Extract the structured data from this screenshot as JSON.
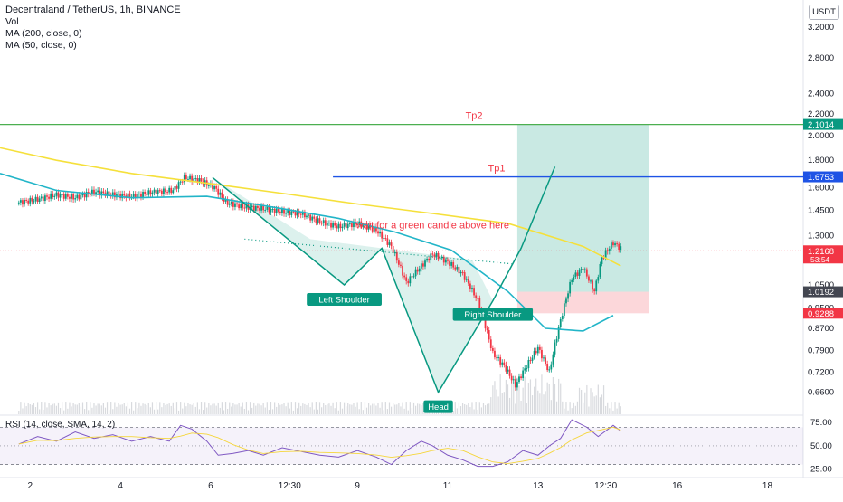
{
  "header": {
    "title": "Decentraland / TetherUS, 1h, BINANCE",
    "indicators": [
      "Vol",
      "MA (200, close, 0)",
      "MA (50, close, 0)"
    ],
    "currency_button": "USDT"
  },
  "rsi_legend": "RSI (14, close, SMA, 14, 2)",
  "chart_data": {
    "type": "candlestick",
    "price_axis": {
      "scale": "log",
      "range": [
        0.6,
        3.6
      ],
      "ticks": [
        "3.2000",
        "2.8000",
        "2.4000",
        "2.2000",
        "2.0000",
        "1.8000",
        "1.6000",
        "1.4500",
        "1.3000",
        "1.0500",
        "0.9500",
        "0.8700",
        "0.7900",
        "0.7200",
        "0.6600"
      ]
    },
    "rsi_axis": {
      "range": [
        16,
        82
      ],
      "ticks": [
        "75.00",
        "50.00",
        "25.00"
      ],
      "band": [
        30,
        70
      ]
    },
    "time_axis": {
      "range": [
        0,
        312
      ],
      "ticks": [
        {
          "t": 6,
          "label": "2"
        },
        {
          "t": 54,
          "label": "4"
        },
        {
          "t": 102,
          "label": "6"
        },
        {
          "t": 144,
          "label": "12:30"
        },
        {
          "t": 180,
          "label": "9"
        },
        {
          "t": 228,
          "label": "11"
        },
        {
          "t": 276,
          "label": "13"
        },
        {
          "t": 312,
          "label": "12:30"
        },
        {
          "t": 350,
          "label": "16"
        },
        {
          "t": 398,
          "label": "18"
        }
      ]
    },
    "price_path": [
      [
        0,
        1.5
      ],
      [
        10,
        1.52
      ],
      [
        20,
        1.55
      ],
      [
        30,
        1.53
      ],
      [
        40,
        1.57
      ],
      [
        50,
        1.55
      ],
      [
        60,
        1.54
      ],
      [
        72,
        1.57
      ],
      [
        82,
        1.58
      ],
      [
        88,
        1.67
      ],
      [
        96,
        1.65
      ],
      [
        104,
        1.6
      ],
      [
        110,
        1.5
      ],
      [
        120,
        1.47
      ],
      [
        130,
        1.46
      ],
      [
        140,
        1.44
      ],
      [
        150,
        1.43
      ],
      [
        160,
        1.38
      ],
      [
        170,
        1.35
      ],
      [
        180,
        1.37
      ],
      [
        190,
        1.33
      ],
      [
        198,
        1.24
      ],
      [
        206,
        1.06
      ],
      [
        212,
        1.12
      ],
      [
        220,
        1.2
      ],
      [
        228,
        1.16
      ],
      [
        236,
        1.1
      ],
      [
        244,
        0.98
      ],
      [
        252,
        0.78
      ],
      [
        258,
        0.74
      ],
      [
        264,
        0.68
      ],
      [
        270,
        0.74
      ],
      [
        276,
        0.8
      ],
      [
        282,
        0.72
      ],
      [
        288,
        0.9
      ],
      [
        294,
        1.08
      ],
      [
        300,
        1.13
      ],
      [
        306,
        1.02
      ],
      [
        310,
        1.18
      ],
      [
        316,
        1.26
      ],
      [
        320,
        1.23
      ]
    ],
    "ma200": [
      [
        -10,
        1.9
      ],
      [
        20,
        1.8
      ],
      [
        60,
        1.7
      ],
      [
        100,
        1.63
      ],
      [
        140,
        1.56
      ],
      [
        180,
        1.49
      ],
      [
        220,
        1.43
      ],
      [
        260,
        1.37
      ],
      [
        300,
        1.24
      ],
      [
        320,
        1.14
      ]
    ],
    "ma50": [
      [
        -10,
        1.7
      ],
      [
        20,
        1.58
      ],
      [
        60,
        1.53
      ],
      [
        100,
        1.54
      ],
      [
        140,
        1.46
      ],
      [
        170,
        1.4
      ],
      [
        200,
        1.32
      ],
      [
        230,
        1.22
      ],
      [
        260,
        1.02
      ],
      [
        280,
        0.87
      ],
      [
        300,
        0.86
      ],
      [
        316,
        0.92
      ]
    ],
    "rsi_path": [
      [
        0,
        52
      ],
      [
        10,
        60
      ],
      [
        20,
        55
      ],
      [
        30,
        65
      ],
      [
        40,
        58
      ],
      [
        50,
        62
      ],
      [
        60,
        55
      ],
      [
        70,
        60
      ],
      [
        80,
        55
      ],
      [
        86,
        72
      ],
      [
        92,
        68
      ],
      [
        100,
        55
      ],
      [
        106,
        40
      ],
      [
        114,
        42
      ],
      [
        122,
        45
      ],
      [
        130,
        40
      ],
      [
        140,
        48
      ],
      [
        150,
        44
      ],
      [
        160,
        40
      ],
      [
        170,
        38
      ],
      [
        180,
        45
      ],
      [
        190,
        38
      ],
      [
        198,
        30
      ],
      [
        206,
        45
      ],
      [
        214,
        55
      ],
      [
        220,
        50
      ],
      [
        228,
        40
      ],
      [
        236,
        35
      ],
      [
        244,
        28
      ],
      [
        252,
        28
      ],
      [
        260,
        33
      ],
      [
        268,
        45
      ],
      [
        276,
        40
      ],
      [
        282,
        50
      ],
      [
        288,
        58
      ],
      [
        294,
        78
      ],
      [
        302,
        70
      ],
      [
        308,
        60
      ],
      [
        316,
        72
      ],
      [
        320,
        66
      ]
    ],
    "annotations": {
      "tp2": {
        "price": 2.1014,
        "label": "Tp2"
      },
      "tp1": {
        "price": 1.6753,
        "label": "Tp1"
      },
      "note": "wait for a green candle above here",
      "labels": [
        "Left Shoulder",
        "Head",
        "Right Shoulder"
      ],
      "price_tags": [
        {
          "price": 2.1014,
          "text": "2.1014",
          "color": "#089981"
        },
        {
          "price": 1.6753,
          "text": "1.6753",
          "color": "#1e53e5"
        },
        {
          "price": 1.2168,
          "text": "1.2168",
          "sub": "53:54",
          "color": "#f23645"
        },
        {
          "price": 1.0192,
          "text": "1.0192",
          "color": "#434651"
        },
        {
          "price": 0.9288,
          "text": "0.9288",
          "color": "#f23645"
        }
      ]
    }
  },
  "colors": {
    "up": "#089981",
    "down": "#f23645",
    "ma200": "#f5e03b",
    "ma50": "#22b5c8",
    "rsi": "#7e57c2",
    "tp2": "#4caf50",
    "tp1": "#1e53e5"
  }
}
